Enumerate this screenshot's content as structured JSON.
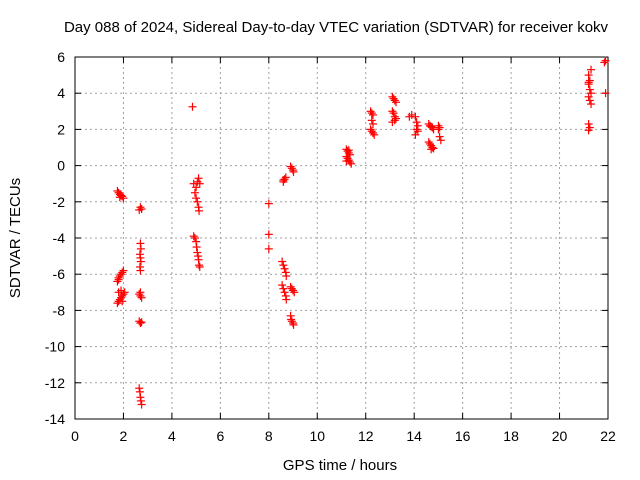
{
  "chart_data": {
    "type": "scatter",
    "title": "Day 088 of 2024, Sidereal Day-to-day VTEC variation (SDTVAR) for receiver kokv",
    "xlabel": "GPS time / hours",
    "ylabel": "SDTVAR / TECUs",
    "xlim": [
      0,
      22
    ],
    "ylim": [
      -14,
      6
    ],
    "xticks": [
      0,
      2,
      4,
      6,
      8,
      10,
      12,
      14,
      16,
      18,
      20,
      22
    ],
    "yticks": [
      -14,
      -12,
      -10,
      -8,
      -6,
      -4,
      -2,
      0,
      2,
      4,
      6
    ],
    "grid": true,
    "marker": "+",
    "color": "#ff0000",
    "series": [
      {
        "name": "SDTVAR",
        "points": [
          [
            1.75,
            -1.4
          ],
          [
            1.8,
            -1.5
          ],
          [
            1.85,
            -1.6
          ],
          [
            1.9,
            -1.65
          ],
          [
            1.95,
            -1.7
          ],
          [
            2.0,
            -1.8
          ],
          [
            1.85,
            -1.75
          ],
          [
            1.75,
            -6.4
          ],
          [
            1.8,
            -6.2
          ],
          [
            1.85,
            -6.1
          ],
          [
            1.9,
            -6.0
          ],
          [
            1.95,
            -5.9
          ],
          [
            2.0,
            -5.8
          ],
          [
            1.8,
            -6.3
          ],
          [
            1.75,
            -7.6
          ],
          [
            1.8,
            -7.5
          ],
          [
            1.85,
            -7.4
          ],
          [
            1.9,
            -7.3
          ],
          [
            1.95,
            -7.2
          ],
          [
            2.0,
            -7.1
          ],
          [
            2.05,
            -7.0
          ],
          [
            1.8,
            -7.0
          ],
          [
            1.9,
            -6.9
          ],
          [
            1.95,
            -7.5
          ],
          [
            2.7,
            -2.3
          ],
          [
            2.75,
            -2.4
          ],
          [
            2.65,
            -2.45
          ],
          [
            2.7,
            -4.3
          ],
          [
            2.72,
            -4.6
          ],
          [
            2.68,
            -4.9
          ],
          [
            2.7,
            -5.1
          ],
          [
            2.72,
            -5.3
          ],
          [
            2.68,
            -5.6
          ],
          [
            2.7,
            -5.8
          ],
          [
            2.65,
            -7.1
          ],
          [
            2.7,
            -7.2
          ],
          [
            2.75,
            -7.3
          ],
          [
            2.7,
            -7.0
          ],
          [
            2.65,
            -8.6
          ],
          [
            2.7,
            -8.7
          ],
          [
            2.75,
            -8.65
          ],
          [
            2.65,
            -12.3
          ],
          [
            2.68,
            -12.5
          ],
          [
            2.7,
            -12.8
          ],
          [
            2.72,
            -13.0
          ],
          [
            2.75,
            -13.2
          ],
          [
            4.85,
            3.25
          ],
          [
            4.9,
            -1.0
          ],
          [
            5.0,
            -1.2
          ],
          [
            5.05,
            -0.9
          ],
          [
            5.1,
            -0.7
          ],
          [
            4.95,
            -1.5
          ],
          [
            5.0,
            -1.8
          ],
          [
            5.05,
            -2.0
          ],
          [
            5.1,
            -2.3
          ],
          [
            5.12,
            -2.5
          ],
          [
            5.15,
            -1.0
          ],
          [
            4.9,
            -3.9
          ],
          [
            4.95,
            -4.0
          ],
          [
            5.0,
            -4.2
          ],
          [
            5.02,
            -4.5
          ],
          [
            5.05,
            -4.8
          ],
          [
            5.08,
            -5.0
          ],
          [
            5.1,
            -5.2
          ],
          [
            5.12,
            -5.5
          ],
          [
            5.15,
            -5.6
          ],
          [
            8.0,
            -2.1
          ],
          [
            8.0,
            -3.8
          ],
          [
            8.0,
            -4.6
          ],
          [
            8.6,
            -0.9
          ],
          [
            8.65,
            -0.75
          ],
          [
            8.7,
            -0.65
          ],
          [
            8.6,
            -0.8
          ],
          [
            8.55,
            -5.3
          ],
          [
            8.6,
            -5.5
          ],
          [
            8.65,
            -5.7
          ],
          [
            8.7,
            -5.9
          ],
          [
            8.72,
            -6.1
          ],
          [
            8.55,
            -6.6
          ],
          [
            8.6,
            -6.8
          ],
          [
            8.65,
            -7.0
          ],
          [
            8.7,
            -7.2
          ],
          [
            8.72,
            -7.4
          ],
          [
            8.9,
            -0.05
          ],
          [
            8.95,
            -0.15
          ],
          [
            9.0,
            -0.25
          ],
          [
            9.02,
            -0.35
          ],
          [
            8.9,
            -6.7
          ],
          [
            8.95,
            -6.8
          ],
          [
            9.0,
            -6.9
          ],
          [
            9.05,
            -7.0
          ],
          [
            8.9,
            -8.3
          ],
          [
            8.92,
            -8.5
          ],
          [
            8.95,
            -8.6
          ],
          [
            9.0,
            -8.7
          ],
          [
            9.02,
            -8.8
          ],
          [
            11.2,
            0.9
          ],
          [
            11.25,
            0.8
          ],
          [
            11.3,
            0.7
          ],
          [
            11.35,
            0.6
          ],
          [
            11.2,
            0.5
          ],
          [
            11.25,
            0.4
          ],
          [
            11.3,
            0.3
          ],
          [
            11.35,
            0.2
          ],
          [
            11.4,
            0.1
          ],
          [
            11.3,
            0.85
          ],
          [
            11.2,
            0.25
          ],
          [
            12.2,
            3.0
          ],
          [
            12.25,
            2.9
          ],
          [
            12.3,
            2.8
          ],
          [
            12.25,
            2.5
          ],
          [
            12.3,
            2.3
          ],
          [
            12.2,
            2.0
          ],
          [
            12.25,
            1.9
          ],
          [
            12.3,
            1.8
          ],
          [
            12.35,
            1.7
          ],
          [
            13.1,
            3.8
          ],
          [
            13.15,
            3.7
          ],
          [
            13.2,
            3.6
          ],
          [
            13.25,
            3.5
          ],
          [
            13.1,
            3.0
          ],
          [
            13.15,
            2.9
          ],
          [
            13.2,
            2.7
          ],
          [
            13.25,
            2.6
          ],
          [
            13.2,
            2.5
          ],
          [
            13.1,
            2.4
          ],
          [
            13.8,
            2.7
          ],
          [
            13.9,
            2.8
          ],
          [
            14.05,
            2.7
          ],
          [
            14.1,
            2.4
          ],
          [
            14.15,
            2.2
          ],
          [
            14.1,
            2.0
          ],
          [
            14.15,
            1.9
          ],
          [
            14.05,
            1.7
          ],
          [
            14.6,
            2.3
          ],
          [
            14.65,
            2.2
          ],
          [
            14.7,
            2.15
          ],
          [
            14.75,
            2.1
          ],
          [
            14.8,
            2.0
          ],
          [
            14.6,
            1.3
          ],
          [
            14.65,
            1.2
          ],
          [
            14.7,
            1.1
          ],
          [
            14.75,
            1.0
          ],
          [
            14.8,
            0.95
          ],
          [
            14.7,
            0.9
          ],
          [
            15.0,
            2.2
          ],
          [
            15.05,
            2.1
          ],
          [
            15.0,
            2.0
          ],
          [
            15.05,
            1.6
          ],
          [
            15.1,
            1.4
          ],
          [
            21.2,
            5.0
          ],
          [
            21.25,
            4.7
          ],
          [
            21.2,
            4.5
          ],
          [
            21.25,
            4.2
          ],
          [
            21.3,
            4.0
          ],
          [
            21.2,
            3.8
          ],
          [
            21.25,
            3.6
          ],
          [
            21.3,
            3.4
          ],
          [
            21.2,
            4.6
          ],
          [
            21.3,
            5.3
          ],
          [
            21.2,
            2.3
          ],
          [
            21.25,
            2.1
          ],
          [
            21.2,
            1.95
          ],
          [
            21.85,
            5.7
          ],
          [
            21.9,
            5.8
          ],
          [
            21.9,
            4.0
          ]
        ]
      }
    ]
  }
}
